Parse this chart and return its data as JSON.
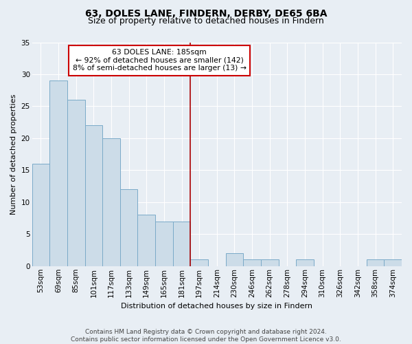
{
  "title1": "63, DOLES LANE, FINDERN, DERBY, DE65 6BA",
  "title2": "Size of property relative to detached houses in Findern",
  "xlabel": "Distribution of detached houses by size in Findern",
  "ylabel": "Number of detached properties",
  "footer1": "Contains HM Land Registry data © Crown copyright and database right 2024.",
  "footer2": "Contains public sector information licensed under the Open Government Licence v3.0.",
  "categories": [
    "53sqm",
    "69sqm",
    "85sqm",
    "101sqm",
    "117sqm",
    "133sqm",
    "149sqm",
    "165sqm",
    "181sqm",
    "197sqm",
    "214sqm",
    "230sqm",
    "246sqm",
    "262sqm",
    "278sqm",
    "294sqm",
    "310sqm",
    "326sqm",
    "342sqm",
    "358sqm",
    "374sqm"
  ],
  "values": [
    16,
    29,
    26,
    22,
    20,
    12,
    8,
    7,
    7,
    1,
    0,
    2,
    1,
    1,
    0,
    1,
    0,
    0,
    0,
    1,
    1
  ],
  "bar_color": "#ccdce8",
  "bar_edge_color": "#7aaac8",
  "bar_width": 1.0,
  "vline_x": 8.5,
  "vline_color": "#aa0000",
  "ylim": [
    0,
    35
  ],
  "yticks": [
    0,
    5,
    10,
    15,
    20,
    25,
    30,
    35
  ],
  "annotation_text": "63 DOLES LANE: 185sqm\n← 92% of detached houses are smaller (142)\n8% of semi-detached houses are larger (13) →",
  "bg_color": "#e8eef4",
  "plot_bg_color": "#e8eef4",
  "grid_color": "#ffffff",
  "title1_fontsize": 10,
  "title2_fontsize": 9,
  "ylabel_fontsize": 8,
  "xlabel_fontsize": 8,
  "tick_fontsize": 7.5,
  "footer_fontsize": 6.5
}
